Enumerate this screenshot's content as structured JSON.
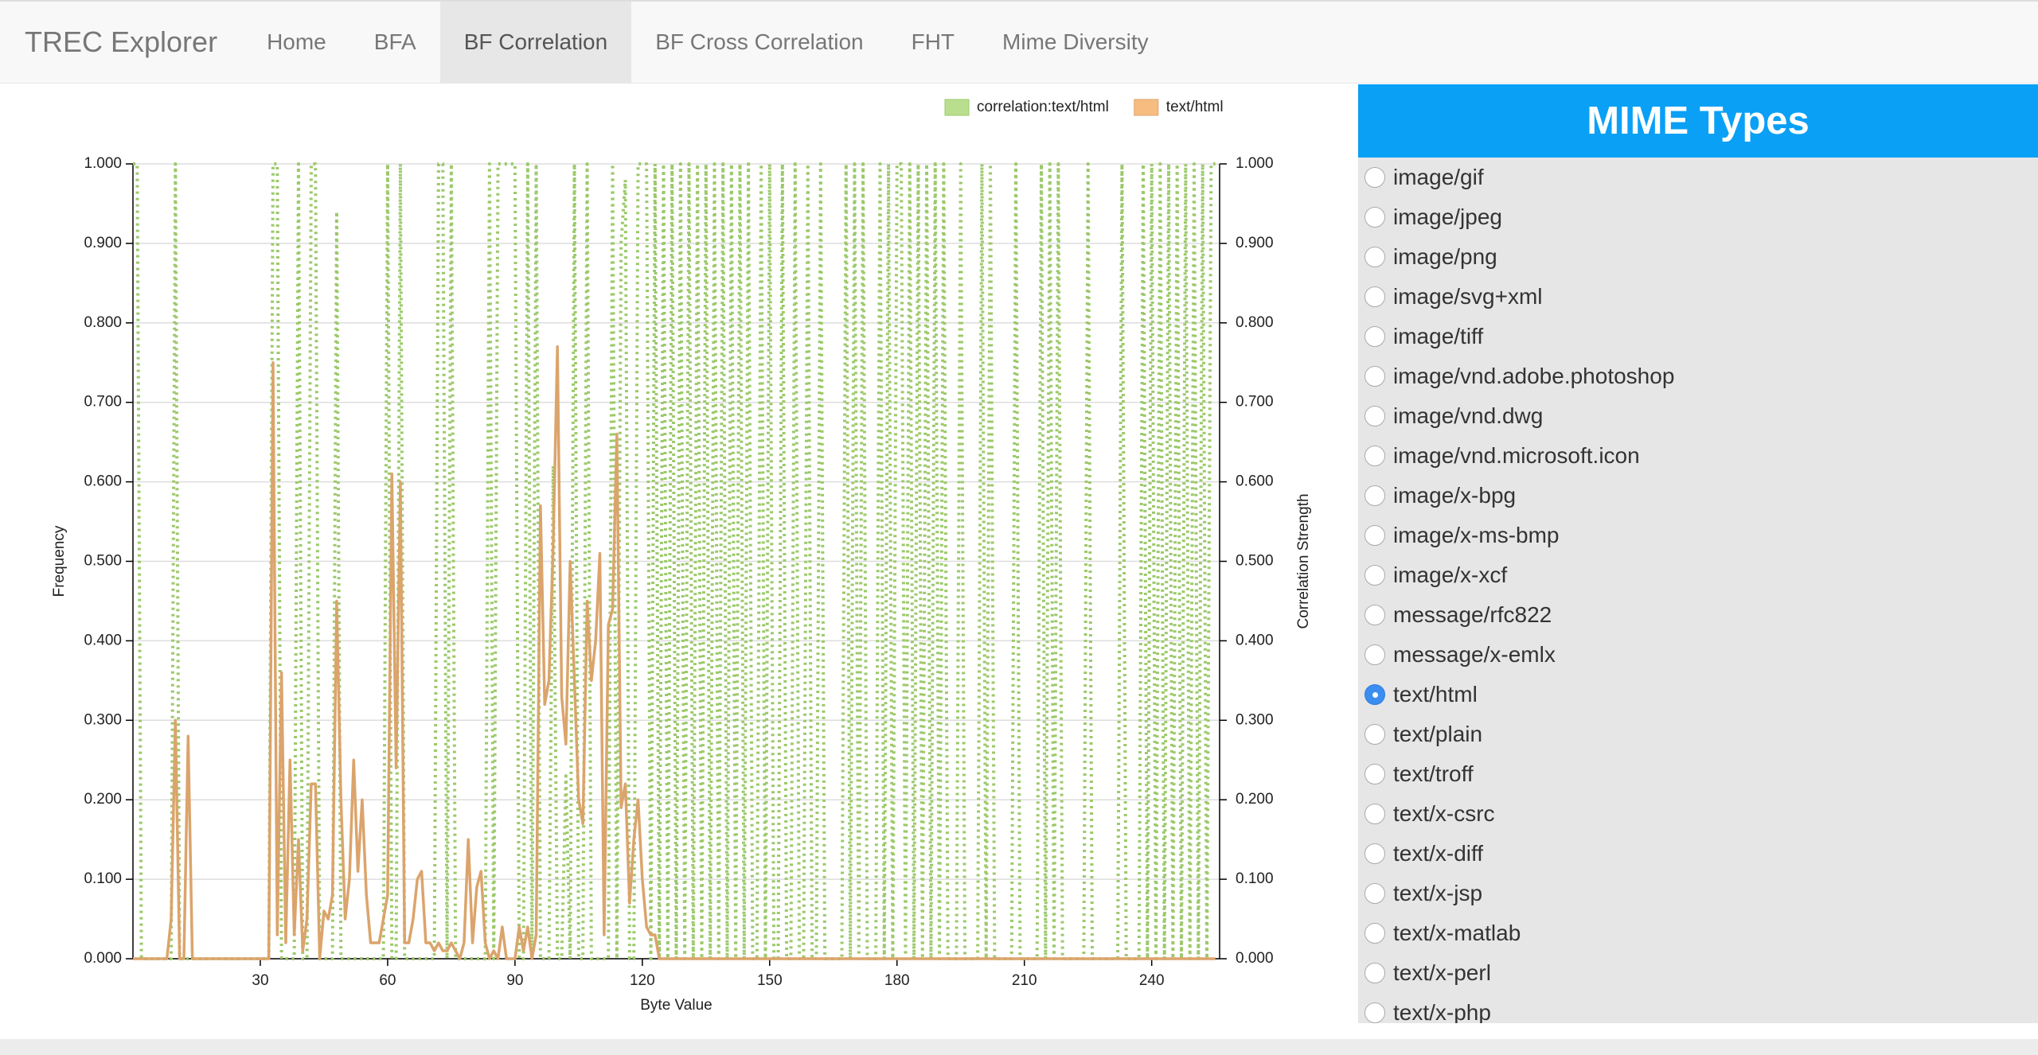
{
  "nav": {
    "brand": "TREC Explorer",
    "items": [
      "Home",
      "BFA",
      "BF Correlation",
      "BF Cross Correlation",
      "FHT",
      "Mime Diversity"
    ],
    "active": "BF Correlation"
  },
  "chart_data": {
    "type": "line",
    "legend": "top-right",
    "grid": true,
    "xlabel": "Byte Value",
    "ylabel": "Frequency",
    "y2label": "Correlation Strength",
    "x": [
      0,
      1,
      2,
      3,
      4,
      5,
      6,
      7,
      8,
      9,
      10,
      11,
      12,
      13,
      14,
      15,
      16,
      17,
      18,
      19,
      20,
      21,
      22,
      23,
      24,
      25,
      26,
      27,
      28,
      29,
      30,
      31,
      32,
      33,
      34,
      35,
      36,
      37,
      38,
      39,
      40,
      41,
      42,
      43,
      44,
      45,
      46,
      47,
      48,
      49,
      50,
      51,
      52,
      53,
      54,
      55,
      56,
      57,
      58,
      59,
      60,
      61,
      62,
      63,
      64,
      65,
      66,
      67,
      68,
      69,
      70,
      71,
      72,
      73,
      74,
      75,
      76,
      77,
      78,
      79,
      80,
      81,
      82,
      83,
      84,
      85,
      86,
      87,
      88,
      89,
      90,
      91,
      92,
      93,
      94,
      95,
      96,
      97,
      98,
      99,
      100,
      101,
      102,
      103,
      104,
      105,
      106,
      107,
      108,
      109,
      110,
      111,
      112,
      113,
      114,
      115,
      116,
      117,
      118,
      119,
      120,
      121,
      122,
      123,
      124,
      125,
      126,
      127,
      128,
      129,
      130,
      131,
      132,
      133,
      134,
      135,
      136,
      137,
      138,
      139,
      140,
      141,
      142,
      143,
      144,
      145,
      146,
      147,
      148,
      149,
      150,
      151,
      152,
      153,
      154,
      155,
      156,
      157,
      158,
      159,
      160,
      161,
      162,
      163,
      164,
      165,
      166,
      167,
      168,
      169,
      170,
      171,
      172,
      173,
      174,
      175,
      176,
      177,
      178,
      179,
      180,
      181,
      182,
      183,
      184,
      185,
      186,
      187,
      188,
      189,
      190,
      191,
      192,
      193,
      194,
      195,
      196,
      197,
      198,
      199,
      200,
      201,
      202,
      203,
      204,
      205,
      206,
      207,
      208,
      209,
      210,
      211,
      212,
      213,
      214,
      215,
      216,
      217,
      218,
      219,
      220,
      221,
      222,
      223,
      224,
      225,
      226,
      227,
      228,
      229,
      230,
      231,
      232,
      233,
      234,
      235,
      236,
      237,
      238,
      239,
      240,
      241,
      242,
      243,
      244,
      245,
      246,
      247,
      248,
      249,
      250,
      251,
      252,
      253,
      254,
      255
    ],
    "xlim": [
      0,
      256
    ],
    "xticks": [
      30,
      60,
      90,
      120,
      150,
      180,
      210,
      240
    ],
    "ylim": [
      0,
      1
    ],
    "yticks": [
      {
        "value": 0,
        "label": "0.000"
      },
      {
        "value": 0.1,
        "label": "0.100"
      },
      {
        "value": 0.2,
        "label": "0.200"
      },
      {
        "value": 0.3,
        "label": "0.300"
      },
      {
        "value": 0.4,
        "label": "0.400"
      },
      {
        "value": 0.5,
        "label": "0.500"
      },
      {
        "value": 0.6,
        "label": "0.600"
      },
      {
        "value": 0.7,
        "label": "0.700"
      },
      {
        "value": 0.8,
        "label": "0.800"
      },
      {
        "value": 0.9,
        "label": "0.900"
      },
      {
        "value": 1,
        "label": "1.000"
      }
    ],
    "y2lim": [
      0,
      1
    ],
    "y2ticks": [
      {
        "value": 0,
        "label": "0.000"
      },
      {
        "value": 0.1,
        "label": "0.100"
      },
      {
        "value": 0.2,
        "label": "0.200"
      },
      {
        "value": 0.3,
        "label": "0.300"
      },
      {
        "value": 0.4,
        "label": "0.400"
      },
      {
        "value": 0.5,
        "label": "0.500"
      },
      {
        "value": 0.6,
        "label": "0.600"
      },
      {
        "value": 0.7,
        "label": "0.700"
      },
      {
        "value": 0.8,
        "label": "0.800"
      },
      {
        "value": 0.9,
        "label": "0.900"
      },
      {
        "value": 1,
        "label": "1.000"
      }
    ],
    "series": [
      {
        "name": "correlation:text/html",
        "color": "#9cc96b",
        "legend_color": "#b9df8e",
        "dashed": true,
        "axis": "y2",
        "values": [
          1,
          1,
          0,
          0,
          0,
          0,
          0,
          0,
          0,
          0,
          1,
          0,
          0,
          0,
          0,
          0,
          0,
          0,
          0,
          0,
          0,
          0,
          0,
          0,
          0,
          0,
          0,
          0,
          0,
          0,
          0,
          0,
          0,
          1,
          1,
          0,
          0,
          0,
          0,
          1,
          0,
          0,
          1,
          1,
          0,
          0,
          0,
          0,
          0.94,
          0,
          0,
          0,
          0,
          0,
          0,
          0,
          0,
          0,
          0,
          0,
          1,
          0,
          0,
          1,
          0,
          0,
          0,
          0,
          0,
          0,
          0,
          0,
          1,
          1,
          0,
          1,
          0,
          0,
          0,
          0,
          0,
          0,
          0,
          0,
          1,
          0,
          1,
          1,
          1,
          1,
          1,
          0,
          0,
          1,
          0,
          1,
          0,
          0,
          0,
          0.62,
          0,
          0,
          0.23,
          0,
          1,
          0,
          0,
          1,
          0,
          0,
          0,
          0,
          0,
          1,
          0,
          0.9,
          0.98,
          0,
          0,
          1,
          1,
          1,
          0,
          1,
          0,
          1,
          0,
          1,
          0,
          1,
          0,
          1,
          0,
          1,
          0,
          1,
          0,
          1,
          0,
          1,
          0,
          1,
          0,
          1,
          0,
          1,
          0,
          0,
          1,
          0,
          1,
          0,
          0,
          1,
          0,
          0,
          1,
          0,
          0,
          1,
          0,
          0,
          1,
          0,
          0,
          0,
          0,
          0,
          1,
          0,
          1,
          0,
          1,
          0,
          0,
          0,
          1,
          0,
          1,
          0,
          1,
          1,
          0,
          1,
          0,
          1,
          0,
          1,
          0,
          1,
          0,
          1,
          0,
          0,
          0,
          1,
          0,
          0,
          0,
          0,
          1,
          0,
          1,
          0,
          0,
          0,
          0,
          0,
          1,
          0,
          0,
          0,
          0,
          0,
          1,
          0,
          1,
          0,
          1,
          0,
          0,
          0,
          0,
          0,
          0,
          1,
          0,
          0,
          0,
          0,
          0,
          0,
          0,
          1,
          0,
          0,
          0,
          0,
          1,
          0,
          1,
          0,
          1,
          0,
          1,
          0,
          1,
          0,
          1,
          0,
          1,
          0,
          1,
          0,
          1,
          1
        ]
      },
      {
        "name": "text/html",
        "color": "#dba46c",
        "legend_color": "#f7bd80",
        "dashed": false,
        "values": [
          0,
          0,
          0,
          0,
          0,
          0,
          0,
          0,
          0,
          0.05,
          0.3,
          0,
          0,
          0.28,
          0,
          0,
          0,
          0,
          0,
          0,
          0,
          0,
          0,
          0,
          0,
          0,
          0,
          0,
          0,
          0,
          0,
          0,
          0,
          0.75,
          0.03,
          0.36,
          0.02,
          0.25,
          0.03,
          0.15,
          0.01,
          0.05,
          0.22,
          0.22,
          0,
          0.06,
          0.05,
          0.08,
          0.45,
          0.2,
          0.05,
          0.1,
          0.25,
          0.11,
          0.2,
          0.08,
          0.02,
          0.02,
          0.02,
          0.05,
          0.08,
          0.61,
          0.24,
          0.6,
          0.02,
          0.02,
          0.05,
          0.1,
          0.11,
          0.02,
          0.02,
          0.01,
          0.02,
          0.01,
          0.01,
          0.02,
          0.01,
          0,
          0.02,
          0.15,
          0.02,
          0.09,
          0.11,
          0.02,
          0,
          0.01,
          0,
          0.04,
          0,
          0,
          0,
          0.04,
          0.01,
          0.04,
          0,
          0.03,
          0.57,
          0.32,
          0.35,
          0.52,
          0.77,
          0.33,
          0.27,
          0.5,
          0.35,
          0.2,
          0.17,
          0.45,
          0.35,
          0.4,
          0.51,
          0.03,
          0.42,
          0.44,
          0.66,
          0.19,
          0.22,
          0.07,
          0.15,
          0.2,
          0.1,
          0.04,
          0.03,
          0.03,
          0,
          0,
          0,
          0,
          0,
          0,
          0,
          0,
          0,
          0,
          0,
          0,
          0,
          0,
          0,
          0,
          0,
          0,
          0,
          0,
          0,
          0,
          0,
          0,
          0,
          0,
          0,
          0,
          0,
          0,
          0,
          0,
          0,
          0,
          0,
          0,
          0,
          0,
          0,
          0,
          0,
          0,
          0,
          0,
          0,
          0,
          0,
          0,
          0,
          0,
          0,
          0,
          0,
          0,
          0,
          0,
          0,
          0,
          0,
          0,
          0,
          0,
          0,
          0,
          0,
          0,
          0,
          0,
          0,
          0,
          0,
          0,
          0,
          0,
          0,
          0,
          0,
          0,
          0,
          0,
          0,
          0,
          0,
          0,
          0,
          0,
          0,
          0,
          0,
          0,
          0,
          0,
          0,
          0,
          0,
          0,
          0,
          0,
          0,
          0,
          0,
          0,
          0,
          0,
          0,
          0,
          0,
          0,
          0,
          0,
          0,
          0,
          0,
          0,
          0,
          0,
          0,
          0,
          0,
          0,
          0,
          0,
          0,
          0,
          0,
          0,
          0,
          0,
          0,
          0,
          0,
          0
        ]
      }
    ]
  },
  "sidebar": {
    "title": "MIME Types",
    "selected": "text/html",
    "options": [
      "image/gif",
      "image/jpeg",
      "image/png",
      "image/svg+xml",
      "image/tiff",
      "image/vnd.adobe.photoshop",
      "image/vnd.dwg",
      "image/vnd.microsoft.icon",
      "image/x-bpg",
      "image/x-ms-bmp",
      "image/x-xcf",
      "message/rfc822",
      "message/x-emlx",
      "text/html",
      "text/plain",
      "text/troff",
      "text/x-csrc",
      "text/x-diff",
      "text/x-jsp",
      "text/x-matlab",
      "text/x-perl",
      "text/x-php"
    ]
  }
}
